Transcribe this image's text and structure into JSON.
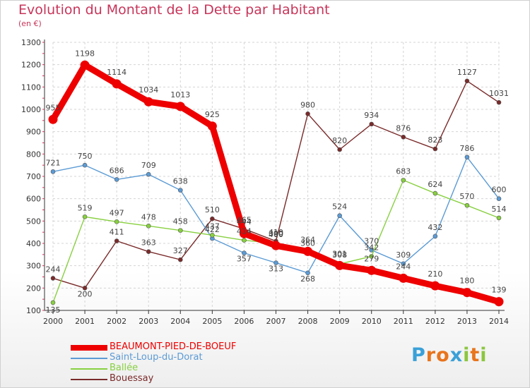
{
  "header": {
    "title": "Evolution du Montant de la Dette par Habitant",
    "subtitle": "(en €)"
  },
  "brand": {
    "letters": [
      "P",
      "r",
      "o",
      "x",
      "i",
      "t",
      "i"
    ],
    "colors": [
      "#3aa0d8",
      "#e8741c",
      "#e8741c",
      "#3aa0d8",
      "#8cc63f",
      "#e8741c",
      "#8cc63f"
    ]
  },
  "chart_data": {
    "type": "line",
    "title": "Evolution du Montant de la Dette par Habitant",
    "ylabel": "(en €)",
    "xlabel": "",
    "x": [
      "2000",
      "2001",
      "2002",
      "2003",
      "2004",
      "2005",
      "2006",
      "2007",
      "2008",
      "2009",
      "2010",
      "2011",
      "2012",
      "2013",
      "2014"
    ],
    "ylim": [
      100,
      1300
    ],
    "yticks": [
      "100",
      "200",
      "300",
      "400",
      "500",
      "600",
      "700",
      "800",
      "900",
      "1000",
      "1100",
      "1200",
      "1300"
    ],
    "grid": true,
    "legend": "bottom-left",
    "series": [
      {
        "name": "BEAUMONT-PIED-DE-BOEUF",
        "color": "#ee0000",
        "values": [
          955,
          1198,
          1114,
          1034,
          1013,
          925,
          444,
          390,
          364,
          301,
          279,
          244,
          210,
          180,
          139
        ],
        "labels": [
          "955",
          "1198",
          "1114",
          "1034",
          "1013",
          "925",
          "444",
          "390",
          "364",
          "301",
          "279",
          "244",
          "210",
          "180",
          "139"
        ]
      },
      {
        "name": "Saint-Loup-du-Dorat",
        "color": "#5b9bd5",
        "values": [
          721,
          750,
          686,
          709,
          638,
          422,
          357,
          313,
          268,
          524,
          370,
          309,
          432,
          786,
          600
        ],
        "labels": [
          "721",
          "750",
          "686",
          "709",
          "638",
          "422",
          "357",
          "313",
          "268",
          "524",
          "370",
          "309",
          "432",
          "786",
          "600"
        ]
      },
      {
        "name": "Ballée",
        "color": "#88d040",
        "values": [
          135,
          519,
          497,
          478,
          458,
          437,
          414,
          400,
          360,
          308,
          342,
          683,
          624,
          570,
          514
        ],
        "labels": [
          "135",
          "519",
          "497",
          "478",
          "458",
          "437",
          "414",
          "400",
          "360",
          "308",
          "342",
          "683",
          "624",
          "570",
          "514"
        ]
      },
      {
        "name": "Bouessay",
        "color": "#7a2a2a",
        "values": [
          244,
          200,
          411,
          363,
          327,
          510,
          465,
          410,
          980,
          820,
          934,
          876,
          823,
          1127,
          1031
        ],
        "labels": [
          "244",
          "200",
          "411",
          "363",
          "327",
          "510",
          "465",
          "410",
          "980",
          "820",
          "934",
          "876",
          "823",
          "1127",
          "1031"
        ]
      }
    ]
  }
}
